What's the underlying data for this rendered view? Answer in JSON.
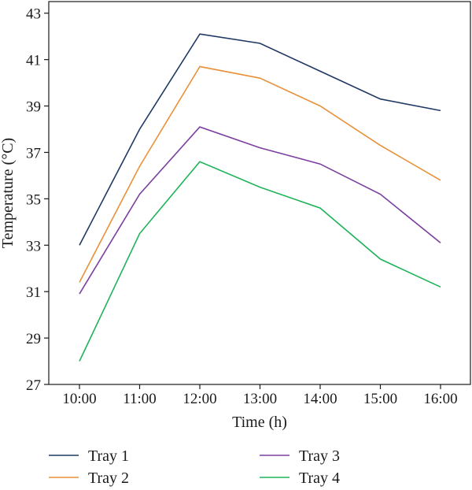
{
  "chart_data": {
    "type": "line",
    "title": "",
    "xlabel": "Time (h)",
    "ylabel": "Temperature (°C)",
    "categories": [
      "10:00",
      "11:00",
      "12:00",
      "13:00",
      "14:00",
      "15:00",
      "16:00"
    ],
    "ylim": [
      27,
      43.5
    ],
    "yticks": [
      27,
      29,
      31,
      33,
      35,
      37,
      39,
      41,
      43
    ],
    "grid": false,
    "legend_position": "bottom",
    "series": [
      {
        "name": "Tray 1",
        "color": "#1f3864",
        "values": [
          33.0,
          38.0,
          42.1,
          41.7,
          40.5,
          39.3,
          38.8
        ]
      },
      {
        "name": "Tray 2",
        "color": "#e8913a",
        "values": [
          31.4,
          36.4,
          40.7,
          40.2,
          39.0,
          37.3,
          35.8
        ]
      },
      {
        "name": "Tray 3",
        "color": "#7b3fa0",
        "values": [
          30.9,
          35.2,
          38.1,
          37.2,
          36.5,
          35.2,
          33.1
        ]
      },
      {
        "name": "Tray 4",
        "color": "#1fb35a",
        "values": [
          28.0,
          33.5,
          36.6,
          35.5,
          34.6,
          32.4,
          31.2
        ]
      }
    ]
  }
}
